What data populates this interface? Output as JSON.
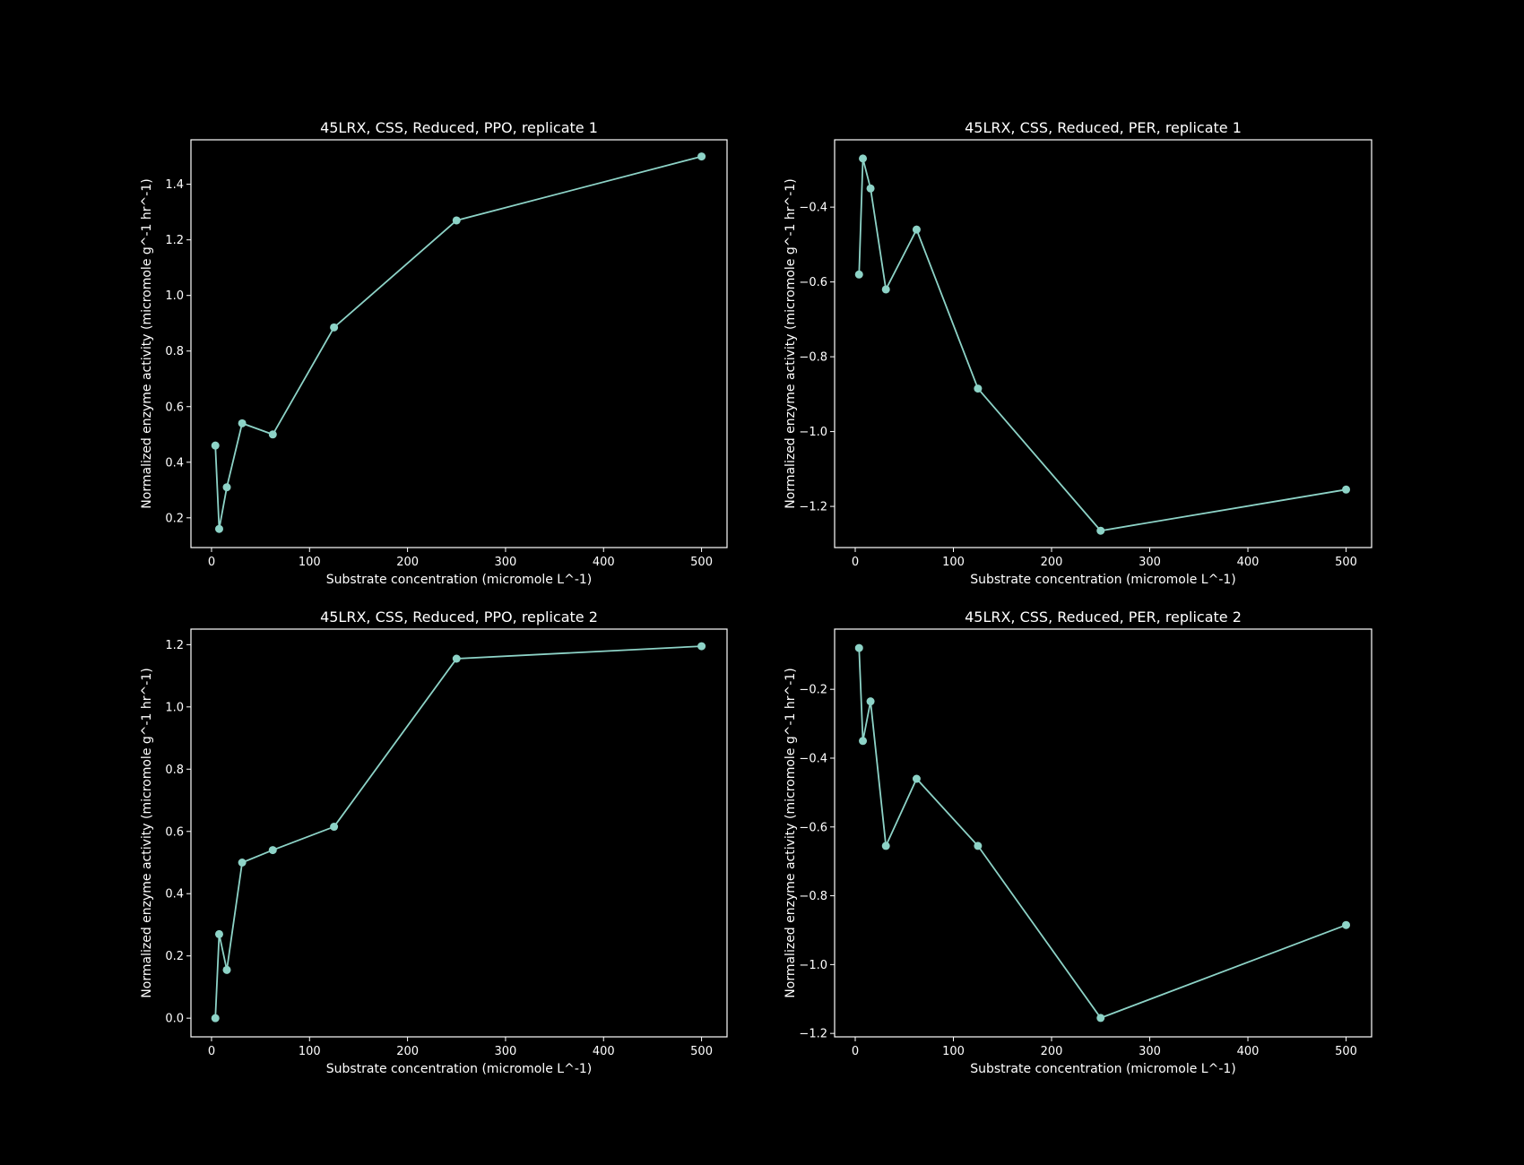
{
  "theme": {
    "background": "#000000",
    "foreground": "#ffffff",
    "series_color": "#8dd3c7"
  },
  "chart_data": [
    {
      "type": "line",
      "title": "45LRX, CSS, Reduced, PPO, replicate 1",
      "xlabel": "Substrate concentration (micromole L^-1)",
      "ylabel": "Normalized enzyme activity (micromole g^-1 hr^-1)",
      "xlim": [
        -21,
        526
      ],
      "ylim": [
        0.093,
        1.56
      ],
      "xticks": [
        0,
        100,
        200,
        300,
        400,
        500
      ],
      "xtick_labels": [
        "0",
        "100",
        "200",
        "300",
        "400",
        "500"
      ],
      "yticks": [
        0.2,
        0.4,
        0.6,
        0.8,
        1.0,
        1.2,
        1.4
      ],
      "ytick_labels": [
        "0.2",
        "0.4",
        "0.6",
        "0.8",
        "1.0",
        "1.2",
        "1.4"
      ],
      "grid": false,
      "series": [
        {
          "x": [
            3.9,
            7.8,
            15.6,
            31.25,
            62.5,
            125,
            250,
            500
          ],
          "y": [
            0.46,
            0.16,
            0.31,
            0.54,
            0.5,
            0.885,
            1.27,
            1.5
          ]
        }
      ]
    },
    {
      "type": "line",
      "title": "45LRX, CSS, Reduced, PER, replicate 1",
      "xlabel": "Substrate concentration (micromole L^-1)",
      "ylabel": "Normalized enzyme activity (micromole g^-1 hr^-1)",
      "xlim": [
        -21,
        526
      ],
      "ylim": [
        -1.31,
        -0.22
      ],
      "xticks": [
        0,
        100,
        200,
        300,
        400,
        500
      ],
      "xtick_labels": [
        "0",
        "100",
        "200",
        "300",
        "400",
        "500"
      ],
      "yticks": [
        -1.2,
        -1.0,
        -0.8,
        -0.6,
        -0.4
      ],
      "ytick_labels": [
        "−1.2",
        "−1.0",
        "−0.8",
        "−0.6",
        "−0.4"
      ],
      "grid": false,
      "series": [
        {
          "x": [
            3.9,
            7.8,
            15.6,
            31.25,
            62.5,
            125,
            250,
            500
          ],
          "y": [
            -0.58,
            -0.27,
            -0.35,
            -0.62,
            -0.46,
            -0.885,
            -1.265,
            -1.155
          ]
        }
      ]
    },
    {
      "type": "line",
      "title": "45LRX, CSS, Reduced, PPO, replicate 2",
      "xlabel": "Substrate concentration (micromole L^-1)",
      "ylabel": "Normalized enzyme activity (micromole g^-1 hr^-1)",
      "xlim": [
        -21,
        526
      ],
      "ylim": [
        -0.06,
        1.25
      ],
      "xticks": [
        0,
        100,
        200,
        300,
        400,
        500
      ],
      "xtick_labels": [
        "0",
        "100",
        "200",
        "300",
        "400",
        "500"
      ],
      "yticks": [
        0.0,
        0.2,
        0.4,
        0.6,
        0.8,
        1.0,
        1.2
      ],
      "ytick_labels": [
        "0.0",
        "0.2",
        "0.4",
        "0.6",
        "0.8",
        "1.0",
        "1.2"
      ],
      "grid": false,
      "series": [
        {
          "x": [
            3.9,
            7.8,
            15.6,
            31.25,
            62.5,
            125,
            250,
            500
          ],
          "y": [
            0.0,
            0.27,
            0.155,
            0.5,
            0.54,
            0.615,
            1.155,
            1.195
          ]
        }
      ]
    },
    {
      "type": "line",
      "title": "45LRX, CSS, Reduced, PER, replicate 2",
      "xlabel": "Substrate concentration (micromole L^-1)",
      "ylabel": "Normalized enzyme activity (micromole g^-1 hr^-1)",
      "xlim": [
        -21,
        526
      ],
      "ylim": [
        -1.21,
        -0.025
      ],
      "xticks": [
        0,
        100,
        200,
        300,
        400,
        500
      ],
      "xtick_labels": [
        "0",
        "100",
        "200",
        "300",
        "400",
        "500"
      ],
      "yticks": [
        -1.2,
        -1.0,
        -0.8,
        -0.6,
        -0.4,
        -0.2
      ],
      "ytick_labels": [
        "−1.2",
        "−1.0",
        "−0.8",
        "−0.6",
        "−0.4",
        "−0.2"
      ],
      "grid": false,
      "series": [
        {
          "x": [
            3.9,
            7.8,
            15.6,
            31.25,
            62.5,
            125,
            250,
            500
          ],
          "y": [
            -0.08,
            -0.35,
            -0.235,
            -0.655,
            -0.46,
            -0.655,
            -1.155,
            -0.885
          ]
        }
      ]
    }
  ]
}
